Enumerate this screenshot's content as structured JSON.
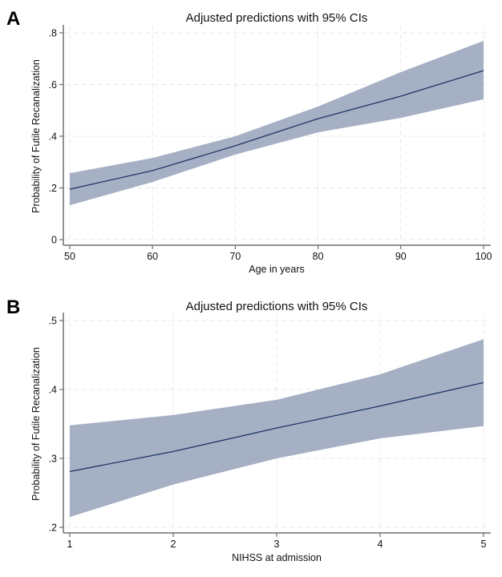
{
  "chart_data": [
    {
      "panel": "A",
      "type": "area",
      "title": "Adjusted predictions with 95% CIs",
      "xlabel": "Age in years",
      "ylabel": "Probability of Futile Recanalization",
      "xlim": [
        50,
        100
      ],
      "ylim": [
        0,
        0.8
      ],
      "xticks": [
        50,
        60,
        70,
        80,
        90,
        100
      ],
      "xtick_labels": [
        "50",
        "60",
        "70",
        "80",
        "90",
        "100"
      ],
      "yticks": [
        0,
        0.2,
        0.4,
        0.6,
        0.8
      ],
      "ytick_labels": [
        "0",
        ".2",
        ".4",
        ".6",
        ".8"
      ],
      "grid": true,
      "x": [
        50,
        60,
        70,
        80,
        90,
        100
      ],
      "series": [
        {
          "name": "Predicted probability",
          "kind": "line",
          "values": [
            0.195,
            0.267,
            0.363,
            0.468,
            0.555,
            0.654
          ]
        },
        {
          "name": "95% CI lower",
          "kind": "band-lower",
          "values": [
            0.133,
            0.223,
            0.329,
            0.415,
            0.471,
            0.543
          ]
        },
        {
          "name": "95% CI upper",
          "kind": "band-upper",
          "values": [
            0.257,
            0.316,
            0.4,
            0.515,
            0.648,
            0.769
          ]
        }
      ],
      "colors": {
        "band": "#a6b0c4",
        "line": "#1f3467"
      }
    },
    {
      "panel": "B",
      "type": "area",
      "title": "Adjusted predictions with 95% CIs",
      "xlabel": "NIHSS at admission",
      "ylabel": "Probability of Futile Recanalization",
      "xlim": [
        1,
        5
      ],
      "ylim": [
        0.2,
        0.5
      ],
      "xticks": [
        1,
        2,
        3,
        4,
        5
      ],
      "xtick_labels": [
        "1",
        "2",
        "3",
        "4",
        "5"
      ],
      "yticks": [
        0.2,
        0.3,
        0.4,
        0.5
      ],
      "ytick_labels": [
        ".2",
        ".3",
        ".4",
        ".5"
      ],
      "grid": true,
      "x": [
        1,
        2,
        3,
        4,
        5
      ],
      "series": [
        {
          "name": "Predicted probability",
          "kind": "line",
          "values": [
            0.281,
            0.31,
            0.344,
            0.376,
            0.41
          ]
        },
        {
          "name": "95% CI lower",
          "kind": "band-lower",
          "values": [
            0.215,
            0.262,
            0.3,
            0.329,
            0.347
          ]
        },
        {
          "name": "95% CI upper",
          "kind": "band-upper",
          "values": [
            0.348,
            0.363,
            0.385,
            0.422,
            0.473
          ]
        }
      ],
      "colors": {
        "band": "#a6b0c4",
        "line": "#1f3467"
      }
    }
  ]
}
